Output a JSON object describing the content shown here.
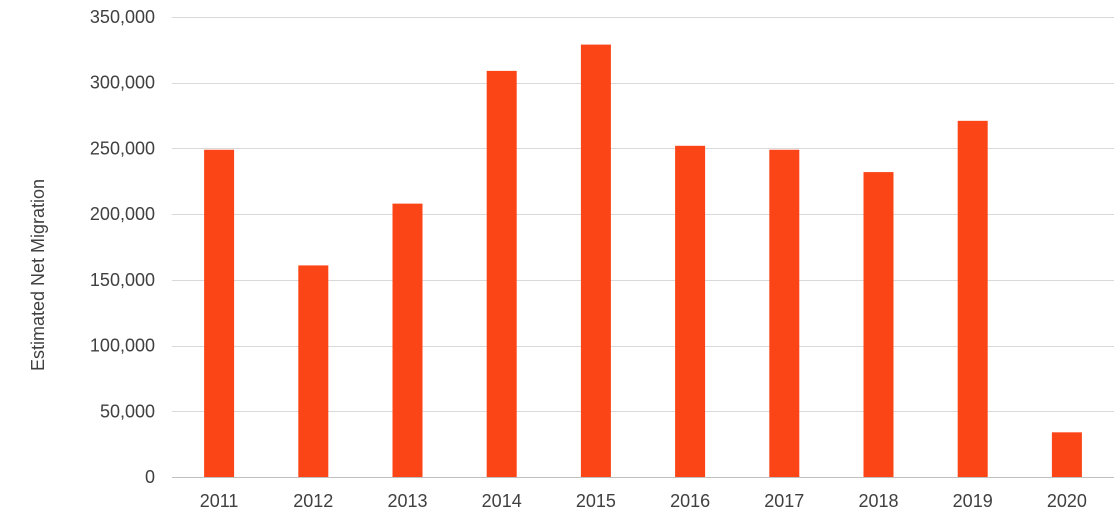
{
  "chart_data": {
    "type": "bar",
    "title": "",
    "xlabel": "",
    "ylabel": "Estimated Net Migration",
    "categories": [
      "2011",
      "2012",
      "2013",
      "2014",
      "2015",
      "2016",
      "2017",
      "2018",
      "2019",
      "2020"
    ],
    "series": [
      {
        "values": [
          249000,
          161000,
          208000,
          309000,
          329000,
          252000,
          249000,
          232000,
          271000,
          34000
        ]
      }
    ],
    "ylim": [
      0,
      350000
    ],
    "yticks": [
      0,
      50000,
      100000,
      150000,
      200000,
      250000,
      300000,
      350000
    ],
    "ytick_labels": [
      "0",
      "50,000",
      "100,000",
      "150,000",
      "200,000",
      "250,000",
      "300,000",
      "350,000"
    ],
    "grid": true,
    "legend": "none",
    "colors": {
      "bar": "#fc4516"
    }
  }
}
